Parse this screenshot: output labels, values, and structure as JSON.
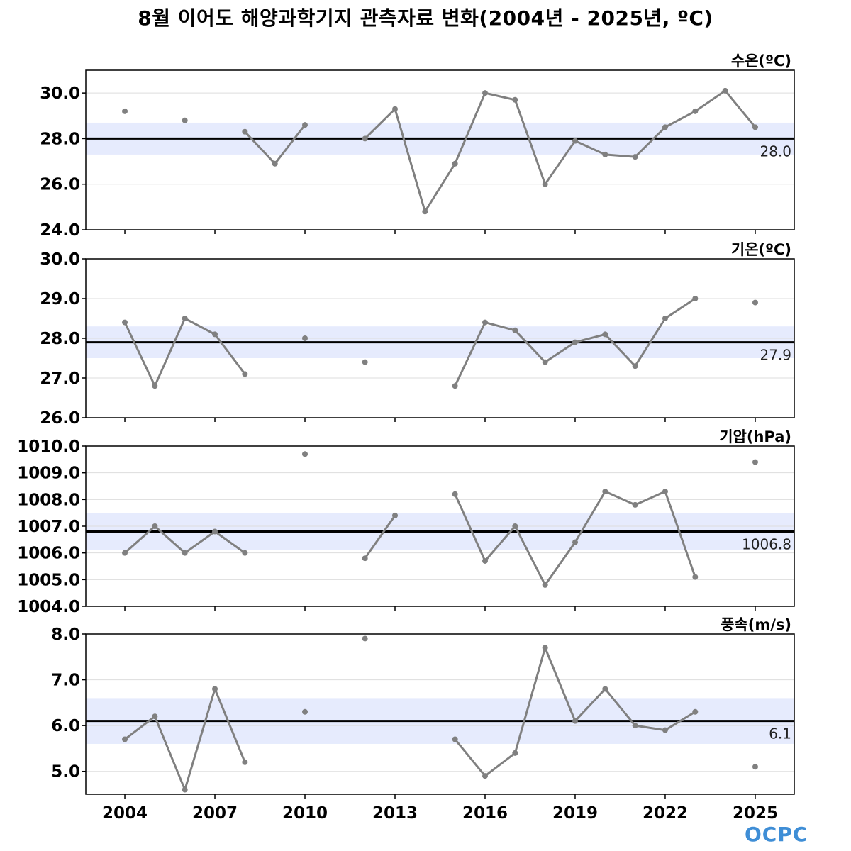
{
  "title": "8월 이어도 해양과학기지 관측자료 변화(2004년 - 2025년, ºC)",
  "logo_text": "OCPC",
  "colors": {
    "series_line": "#808080",
    "mean_line": "#000000",
    "band": "#e6ebfd",
    "grid": "#dddddd",
    "axis": "#000000"
  },
  "chart_data": [
    {
      "type": "line",
      "panel_label": "수온(ºC)",
      "x": [
        2004,
        2005,
        2006,
        2007,
        2008,
        2009,
        2010,
        2011,
        2012,
        2013,
        2014,
        2015,
        2016,
        2017,
        2018,
        2019,
        2020,
        2021,
        2022,
        2023,
        2024,
        2025
      ],
      "values": [
        29.2,
        null,
        28.8,
        null,
        28.3,
        26.9,
        28.6,
        null,
        28.0,
        29.3,
        24.8,
        26.9,
        30.0,
        29.7,
        26.0,
        27.9,
        27.3,
        27.2,
        28.5,
        29.2,
        30.1,
        28.5
      ],
      "mean": 28.0,
      "mean_label": "28.0",
      "band": [
        27.3,
        28.7
      ],
      "ylim": [
        24.0,
        31.0
      ],
      "yticks": [
        24.0,
        26.0,
        28.0,
        30.0
      ],
      "ytick_labels": [
        "24.0",
        "26.0",
        "28.0",
        "30.0"
      ]
    },
    {
      "type": "line",
      "panel_label": "기온(ºC)",
      "x": [
        2004,
        2005,
        2006,
        2007,
        2008,
        2009,
        2010,
        2011,
        2012,
        2013,
        2014,
        2015,
        2016,
        2017,
        2018,
        2019,
        2020,
        2021,
        2022,
        2023,
        2024,
        2025
      ],
      "values": [
        28.4,
        26.8,
        28.5,
        28.1,
        27.1,
        null,
        28.0,
        null,
        27.4,
        null,
        null,
        26.8,
        28.4,
        28.2,
        27.4,
        27.9,
        28.1,
        27.3,
        28.5,
        29.0,
        null,
        28.9
      ],
      "mean": 27.9,
      "mean_label": "27.9",
      "band": [
        27.5,
        28.3
      ],
      "ylim": [
        26.0,
        30.0
      ],
      "yticks": [
        26.0,
        27.0,
        28.0,
        29.0,
        30.0
      ],
      "ytick_labels": [
        "26.0",
        "27.0",
        "28.0",
        "29.0",
        "30.0"
      ]
    },
    {
      "type": "line",
      "panel_label": "기압(hPa)",
      "x": [
        2004,
        2005,
        2006,
        2007,
        2008,
        2009,
        2010,
        2011,
        2012,
        2013,
        2014,
        2015,
        2016,
        2017,
        2018,
        2019,
        2020,
        2021,
        2022,
        2023,
        2024,
        2025
      ],
      "values": [
        1006.0,
        1007.0,
        1006.0,
        1006.8,
        1006.0,
        null,
        1009.7,
        null,
        1005.8,
        1007.4,
        null,
        1008.2,
        1005.7,
        1007.0,
        1004.8,
        1006.4,
        1008.3,
        1007.8,
        1008.3,
        1005.1,
        null,
        1009.4
      ],
      "mean": 1006.8,
      "mean_label": "1006.8",
      "band": [
        1006.1,
        1007.5
      ],
      "ylim": [
        1004.0,
        1010.0
      ],
      "yticks": [
        1004.0,
        1005.0,
        1006.0,
        1007.0,
        1008.0,
        1009.0,
        1010.0
      ],
      "ytick_labels": [
        "1004.0",
        "1005.0",
        "1006.0",
        "1007.0",
        "1008.0",
        "1009.0",
        "1010.0"
      ]
    },
    {
      "type": "line",
      "panel_label": "풍속(m/s)",
      "x": [
        2004,
        2005,
        2006,
        2007,
        2008,
        2009,
        2010,
        2011,
        2012,
        2013,
        2014,
        2015,
        2016,
        2017,
        2018,
        2019,
        2020,
        2021,
        2022,
        2023,
        2024,
        2025
      ],
      "values": [
        5.7,
        6.2,
        4.6,
        6.8,
        5.2,
        null,
        6.3,
        null,
        7.9,
        null,
        null,
        5.7,
        4.9,
        5.4,
        7.7,
        6.1,
        6.8,
        6.0,
        5.9,
        6.3,
        null,
        5.1
      ],
      "mean": 6.1,
      "mean_label": "6.1",
      "band": [
        5.6,
        6.6
      ],
      "ylim": [
        4.5,
        8.0
      ],
      "yticks": [
        5.0,
        6.0,
        7.0,
        8.0
      ],
      "ytick_labels": [
        "5.0",
        "6.0",
        "7.0",
        "8.0"
      ]
    }
  ],
  "xaxis": {
    "xlim": [
      2002.7,
      2026.3
    ],
    "ticks": [
      2004,
      2007,
      2010,
      2013,
      2016,
      2019,
      2022,
      2025
    ],
    "tick_labels": [
      "2004",
      "2007",
      "2010",
      "2013",
      "2016",
      "2019",
      "2022",
      "2025"
    ]
  }
}
